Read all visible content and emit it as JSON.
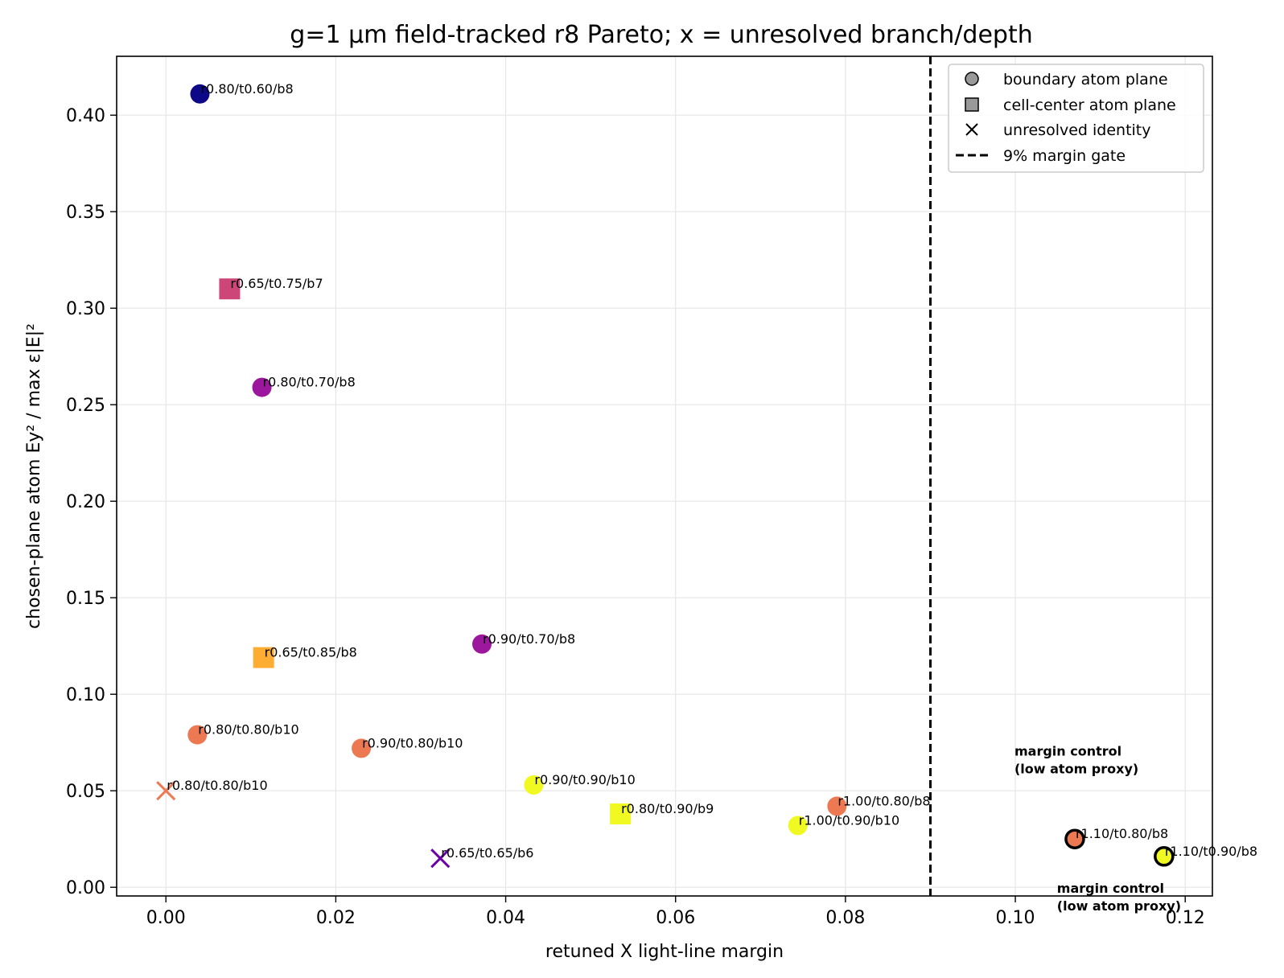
{
  "chart_data": {
    "type": "scatter",
    "title": "g=1 µm field-tracked r8 Pareto; x = unresolved branch/depth",
    "xlabel": "retuned X light-line margin",
    "ylabel": "chosen-plane atom Ey² / max ε|E|²",
    "xlim": [
      -0.0058,
      0.1232
    ],
    "ylim": [
      -0.0045,
      0.4305
    ],
    "xticks": [
      0.0,
      0.02,
      0.04,
      0.06,
      0.08,
      0.1,
      0.12
    ],
    "xtick_labels": [
      "0.00",
      "0.02",
      "0.04",
      "0.06",
      "0.08",
      "0.10",
      "0.12"
    ],
    "yticks": [
      0.0,
      0.05,
      0.1,
      0.15,
      0.2,
      0.25,
      0.3,
      0.35,
      0.4
    ],
    "ytick_labels": [
      "0.00",
      "0.05",
      "0.10",
      "0.15",
      "0.20",
      "0.25",
      "0.30",
      "0.35",
      "0.40"
    ],
    "grid": true,
    "legend": {
      "placement": "top-right",
      "entries": [
        {
          "label": "boundary atom plane",
          "marker": "circle"
        },
        {
          "label": "cell-center atom plane",
          "marker": "square"
        },
        {
          "label": "unresolved identity",
          "marker": "x"
        },
        {
          "label": "9% margin gate",
          "marker": "dashed-line"
        }
      ]
    },
    "vline": {
      "x": 0.09,
      "style": "dashed",
      "color": "#000000"
    },
    "points": [
      {
        "x": 0.004,
        "y": 0.411,
        "label": "r0.80/t0.60/b8",
        "marker": "circle",
        "color": "#0d0887"
      },
      {
        "x": 0.0075,
        "y": 0.31,
        "label": "r0.65/t0.75/b7",
        "marker": "square",
        "color": "#cc4778"
      },
      {
        "x": 0.0113,
        "y": 0.259,
        "label": "r0.80/t0.70/b8",
        "marker": "circle",
        "color": "#9c179e"
      },
      {
        "x": 0.0115,
        "y": 0.119,
        "label": "r0.65/t0.85/b8",
        "marker": "square",
        "color": "#fdae32"
      },
      {
        "x": 0.0372,
        "y": 0.126,
        "label": "r0.90/t0.70/b8",
        "marker": "circle",
        "color": "#9c179e"
      },
      {
        "x": 0.0037,
        "y": 0.079,
        "label": "r0.80/t0.80/b10",
        "marker": "circle",
        "color": "#ed7953"
      },
      {
        "x": 0.0,
        "y": 0.05,
        "label": "r0.80/t0.80/b10",
        "marker": "x",
        "color": "#ed7953"
      },
      {
        "x": 0.023,
        "y": 0.072,
        "label": "r0.90/t0.80/b10",
        "marker": "circle",
        "color": "#ed7953"
      },
      {
        "x": 0.0433,
        "y": 0.053,
        "label": "r0.90/t0.90/b10",
        "marker": "circle",
        "color": "#f0f921"
      },
      {
        "x": 0.0535,
        "y": 0.038,
        "label": "r0.80/t0.90/b9",
        "marker": "square",
        "color": "#f0f921"
      },
      {
        "x": 0.0323,
        "y": 0.015,
        "label": "r0.65/t0.65/b6",
        "marker": "x",
        "color": "#6a00a8"
      },
      {
        "x": 0.0744,
        "y": 0.032,
        "label": "r1.00/t0.90/b10",
        "marker": "circle",
        "color": "#f0f921"
      },
      {
        "x": 0.079,
        "y": 0.042,
        "label": "r1.00/t0.80/b8",
        "marker": "circle",
        "color": "#ed7953"
      },
      {
        "x": 0.107,
        "y": 0.025,
        "label": "r1.10/t0.80/b8",
        "marker": "circle",
        "color": "#ed7953",
        "outlined": true
      },
      {
        "x": 0.1175,
        "y": 0.016,
        "label": "r1.10/t0.90/b8",
        "marker": "circle",
        "color": "#f0f921",
        "outlined": true
      }
    ],
    "annotations": [
      {
        "text": "margin control\n(low atom proxy)",
        "x": 0.0999,
        "y": 0.059
      },
      {
        "text": "margin control\n(low atom proxy)",
        "x": 0.1049,
        "y": -0.012
      }
    ]
  }
}
